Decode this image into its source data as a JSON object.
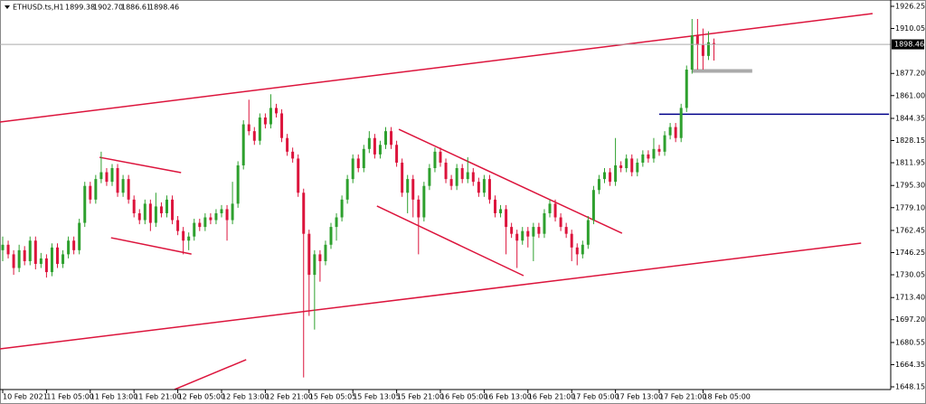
{
  "chart_data": {
    "type": "candlestick",
    "title": "ETHUSD.ts,H1",
    "last_labels": [
      "1899.38",
      "1902.70",
      "1886.61",
      "1898.46"
    ],
    "bull_color": "#2ea02e",
    "bear_color": "#dc143c",
    "ylim": [
      1646.17,
      1930.87
    ],
    "yticks": [
      1926.25,
      1910.05,
      {
        "value": 1877.2,
        "label": "1877.20"
      },
      {
        "value": 1861,
        "label": "1861.00"
      },
      1844.35,
      1828.15,
      1811.95,
      {
        "value": 1795.3,
        "label": "1795.30"
      },
      {
        "value": 1779.1,
        "label": "1779.10"
      },
      1762.45,
      1746.25,
      1730.05,
      {
        "value": 1713.4,
        "label": "1713.40"
      },
      {
        "value": 1697.2,
        "label": "1697.20"
      },
      1680.55,
      1664.35,
      1648.15
    ],
    "x_labels": [
      {
        "index": 0,
        "label": "10 Feb 2021"
      },
      {
        "index": 8,
        "label": "11 Feb 05:00"
      },
      {
        "index": 16,
        "label": "11 Feb 13:00"
      },
      {
        "index": 24,
        "label": "11 Feb 21:00"
      },
      {
        "index": 32,
        "label": "12 Feb 05:00"
      },
      {
        "index": 40,
        "label": "12 Feb 13:00"
      },
      {
        "index": 48,
        "label": "12 Feb 21:00"
      },
      {
        "index": 56,
        "label": "15 Feb 05:05"
      },
      {
        "index": 64,
        "label": "15 Feb 13:05"
      },
      {
        "index": 72,
        "label": "15 Feb 21:00"
      },
      {
        "index": 80,
        "label": "16 Feb 05:00"
      },
      {
        "index": 88,
        "label": "16 Feb 13:00"
      },
      {
        "index": 96,
        "label": "16 Feb 21:00"
      },
      {
        "index": 104,
        "label": "17 Feb 05:00"
      },
      {
        "index": 112,
        "label": "17 Feb 13:00"
      },
      {
        "index": 120,
        "label": "17 Feb 21:00"
      },
      {
        "index": 128,
        "label": "18 Feb 05:00"
      }
    ],
    "open": [
      1748,
      1752,
      1745,
      1735,
      1748,
      1740,
      1755,
      1738,
      1742,
      1732,
      1750,
      1738,
      1745,
      1755,
      1748,
      1768,
      1795,
      1785,
      1800,
      1805,
      1798,
      1808,
      1790,
      1800,
      1785,
      1775,
      1770,
      1782,
      1768,
      1780,
      1775,
      1785,
      1770,
      1762,
      1755,
      1758,
      1768,
      1765,
      1772,
      1770,
      1775,
      1778,
      1770,
      1782,
      1810,
      1840,
      1835,
      1828,
      1845,
      1840,
      1852,
      1848,
      1830,
      1820,
      1815,
      1790,
      1760,
      1730,
      1745,
      1740,
      1752,
      1765,
      1772,
      1785,
      1800,
      1815,
      1808,
      1822,
      1830,
      1818,
      1825,
      1835,
      1825,
      1812,
      1790,
      1800,
      1785,
      1772,
      1795,
      1808,
      1820,
      1812,
      1800,
      1795,
      1808,
      1800,
      1805,
      1798,
      1790,
      1800,
      1785,
      1775,
      1778,
      1765,
      1760,
      1755,
      1762,
      1758,
      1765,
      1760,
      1775,
      1782,
      1772,
      1765,
      1760,
      1750,
      1745,
      1752,
      1770,
      1792,
      1800,
      1805,
      1798,
      1810,
      1808,
      1815,
      1805,
      1812,
      1818,
      1815,
      1822,
      1820,
      1832,
      1838,
      1830,
      1852,
      1880,
      1905,
      1898,
      1890,
      1899.38
    ],
    "high": [
      1758,
      1755,
      1748,
      1752,
      1751,
      1758,
      1758,
      1746,
      1745,
      1753,
      1753,
      1748,
      1758,
      1758,
      1771,
      1798,
      1798,
      1803,
      1820,
      1808,
      1811,
      1811,
      1803,
      1803,
      1788,
      1778,
      1785,
      1785,
      1790,
      1783,
      1788,
      1788,
      1773,
      1765,
      1761,
      1771,
      1771,
      1775,
      1775,
      1778,
      1781,
      1781,
      1798,
      1813,
      1843,
      1858,
      1838,
      1848,
      1848,
      1862,
      1855,
      1851,
      1833,
      1823,
      1818,
      1793,
      1763,
      1748,
      1748,
      1755,
      1768,
      1775,
      1788,
      1803,
      1818,
      1818,
      1825,
      1835,
      1833,
      1828,
      1838,
      1838,
      1828,
      1815,
      1803,
      1803,
      1788,
      1798,
      1811,
      1823,
      1823,
      1815,
      1803,
      1811,
      1811,
      1816,
      1808,
      1801,
      1803,
      1803,
      1788,
      1781,
      1781,
      1768,
      1763,
      1765,
      1765,
      1768,
      1768,
      1778,
      1785,
      1785,
      1775,
      1768,
      1763,
      1753,
      1755,
      1773,
      1795,
      1803,
      1808,
      1808,
      1830,
      1813,
      1818,
      1818,
      1815,
      1821,
      1821,
      1830,
      1825,
      1835,
      1841,
      1841,
      1855,
      1883,
      1917,
      1917,
      1910,
      1908,
      1902.7
    ],
    "low": [
      1740,
      1742,
      1730,
      1732,
      1737,
      1737,
      1734,
      1735,
      1728,
      1729,
      1735,
      1735,
      1742,
      1745,
      1745,
      1765,
      1782,
      1782,
      1797,
      1795,
      1795,
      1787,
      1787,
      1782,
      1772,
      1767,
      1767,
      1762,
      1765,
      1772,
      1772,
      1767,
      1759,
      1745,
      1748,
      1755,
      1762,
      1762,
      1767,
      1767,
      1772,
      1755,
      1767,
      1779,
      1807,
      1832,
      1825,
      1825,
      1837,
      1837,
      1845,
      1827,
      1817,
      1812,
      1787,
      1655,
      1700,
      1690,
      1725,
      1737,
      1749,
      1755,
      1769,
      1782,
      1797,
      1805,
      1805,
      1819,
      1815,
      1815,
      1822,
      1822,
      1809,
      1787,
      1775,
      1772,
      1745,
      1769,
      1792,
      1805,
      1809,
      1797,
      1792,
      1792,
      1797,
      1797,
      1795,
      1787,
      1787,
      1782,
      1772,
      1772,
      1745,
      1757,
      1735,
      1752,
      1750,
      1740,
      1757,
      1757,
      1772,
      1769,
      1762,
      1757,
      1740,
      1737,
      1742,
      1749,
      1767,
      1789,
      1797,
      1795,
      1795,
      1805,
      1805,
      1802,
      1802,
      1809,
      1812,
      1812,
      1817,
      1817,
      1829,
      1827,
      1827,
      1849,
      1877,
      1880,
      1880,
      1887,
      1886.61
    ],
    "close": [
      1752,
      1745,
      1735,
      1748,
      1740,
      1755,
      1738,
      1742,
      1732,
      1750,
      1738,
      1745,
      1755,
      1748,
      1768,
      1795,
      1785,
      1800,
      1805,
      1798,
      1808,
      1790,
      1800,
      1785,
      1775,
      1770,
      1782,
      1768,
      1780,
      1775,
      1785,
      1770,
      1762,
      1755,
      1758,
      1768,
      1765,
      1772,
      1770,
      1775,
      1778,
      1770,
      1782,
      1810,
      1840,
      1835,
      1828,
      1845,
      1840,
      1852,
      1848,
      1830,
      1820,
      1815,
      1790,
      1760,
      1730,
      1745,
      1740,
      1752,
      1765,
      1772,
      1785,
      1800,
      1815,
      1808,
      1822,
      1830,
      1818,
      1825,
      1835,
      1825,
      1812,
      1790,
      1800,
      1785,
      1772,
      1795,
      1808,
      1820,
      1812,
      1800,
      1795,
      1808,
      1800,
      1805,
      1798,
      1790,
      1800,
      1785,
      1775,
      1778,
      1765,
      1760,
      1755,
      1762,
      1758,
      1765,
      1760,
      1775,
      1782,
      1772,
      1765,
      1760,
      1750,
      1745,
      1752,
      1770,
      1792,
      1800,
      1805,
      1798,
      1810,
      1808,
      1815,
      1805,
      1812,
      1818,
      1815,
      1822,
      1820,
      1832,
      1838,
      1830,
      1852,
      1880,
      1905,
      1898,
      1890,
      1900,
      1898.46
    ],
    "trendlines": [
      {
        "color": "#dc143c",
        "width": 1.5,
        "points": [
          [
            -0.5,
            1841.7
          ],
          [
            159,
            1920.96
          ]
        ]
      },
      {
        "color": "#dc143c",
        "width": 1.5,
        "points": [
          [
            -0.5,
            1675.9
          ],
          [
            156.9,
            1753.2
          ]
        ]
      },
      {
        "color": "#dc143c",
        "width": 1.5,
        "points": [
          [
            17.7,
            1815.9
          ],
          [
            32.6,
            1804.7
          ]
        ]
      },
      {
        "color": "#dc143c",
        "width": 1.5,
        "points": [
          [
            19.8,
            1757.1
          ],
          [
            34.5,
            1745.2
          ]
        ]
      },
      {
        "color": "#dc143c",
        "width": 1.5,
        "points": [
          [
            72.4,
            1836.4
          ],
          [
            113.2,
            1760.4
          ]
        ]
      },
      {
        "color": "#dc143c",
        "width": 1.5,
        "points": [
          [
            68.4,
            1780.3
          ],
          [
            95.2,
            1729.4
          ]
        ]
      },
      {
        "color": "#dc143c",
        "width": 1.5,
        "points": [
          [
            31.4,
            1646.2
          ],
          [
            44.5,
            1668
          ]
        ]
      },
      {
        "color": "#00008b",
        "width": 1.5,
        "points": [
          [
            120,
            1847.4
          ],
          [
            162,
            1847.4
          ]
        ]
      },
      {
        "color": "#aaaaaa",
        "width": 4,
        "points": [
          [
            126,
            1879
          ],
          [
            137,
            1879
          ]
        ]
      }
    ]
  }
}
